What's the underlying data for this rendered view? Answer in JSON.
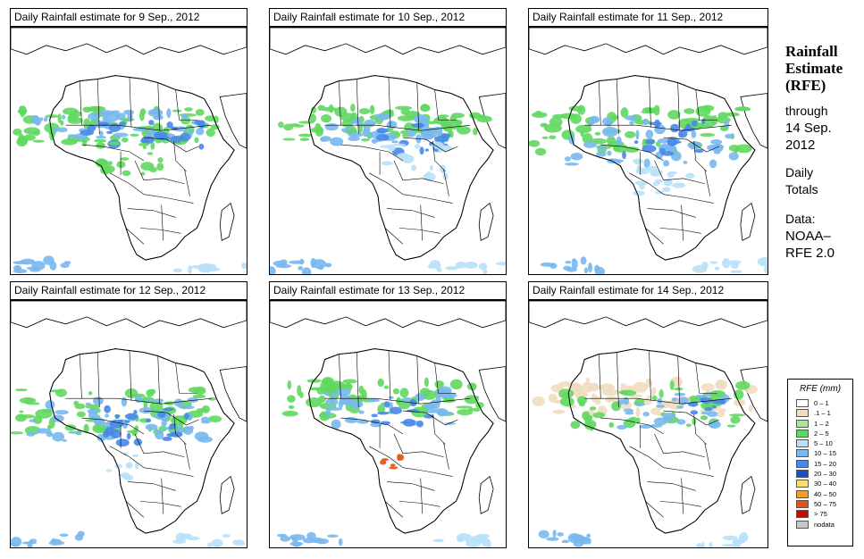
{
  "panels": [
    {
      "title": "Daily Rainfall estimate for  9 Sep., 2012"
    },
    {
      "title": "Daily Rainfall estimate for  10 Sep., 2012"
    },
    {
      "title": "Daily Rainfall estimate for  11 Sep., 2012"
    },
    {
      "title": "Daily Rainfall estimate for  12 Sep., 2012"
    },
    {
      "title": "Daily Rainfall estimate for  13 Sep., 2012"
    },
    {
      "title": "Daily Rainfall estimate for  14 Sep., 2012"
    }
  ],
  "sidebar": {
    "title_line1": "Rainfall",
    "title_line2": "Estimate",
    "title_line3": "(RFE)",
    "through": "through",
    "date_line1": "14 Sep.",
    "date_line2": "2012",
    "totals_line1": "Daily",
    "totals_line2": "Totals",
    "data_line1": "Data:",
    "data_line2": "NOAA–",
    "data_line3": "RFE 2.0"
  },
  "legend": {
    "title": "RFE (mm)",
    "items": [
      {
        "label": "0 – 1",
        "color": "#ffffff"
      },
      {
        "label": ".1 – 1",
        "color": "#f0dcc0"
      },
      {
        "label": "1 – 2",
        "color": "#a8e898"
      },
      {
        "label": "2 – 5",
        "color": "#60d860"
      },
      {
        "label": "5 – 10",
        "color": "#b8e0f8"
      },
      {
        "label": "10 – 15",
        "color": "#78b8f0"
      },
      {
        "label": "15 – 20",
        "color": "#4888e8"
      },
      {
        "label": "20 – 30",
        "color": "#1850c8"
      },
      {
        "label": "30 – 40",
        "color": "#f8e070"
      },
      {
        "label": "40 – 50",
        "color": "#f0a030"
      },
      {
        "label": "50 – 75",
        "color": "#e85018"
      },
      {
        "label": "> 75",
        "color": "#b81008"
      },
      {
        "label": "nodata",
        "color": "#c8c8c8"
      }
    ]
  }
}
